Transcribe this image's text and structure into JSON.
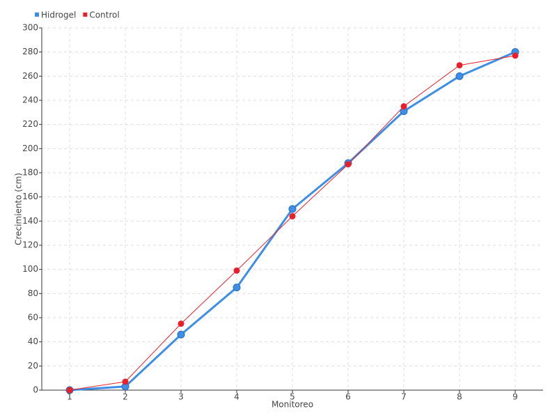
{
  "chart_data": {
    "type": "line",
    "x_label": "Monitoreo",
    "y_label": "Crecimiento (cm)",
    "categories": [
      "1",
      "2",
      "3",
      "4",
      "5",
      "6",
      "7",
      "8",
      "9"
    ],
    "series": [
      {
        "name": "Hidrogel",
        "color": "#3d8ee6",
        "values": [
          0,
          3,
          46,
          85,
          150,
          188,
          231,
          260,
          280
        ]
      },
      {
        "name": "Control",
        "color": "#e8202a",
        "values": [
          0,
          7,
          55,
          99,
          144,
          187,
          235,
          269,
          277
        ]
      }
    ],
    "ylim": [
      0,
      300
    ],
    "yticks": [
      0,
      20,
      40,
      60,
      80,
      100,
      120,
      140,
      160,
      180,
      200,
      220,
      240,
      260,
      280,
      300
    ],
    "grid": true,
    "legend": "top-left"
  }
}
